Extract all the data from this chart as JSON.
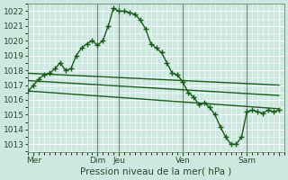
{
  "background_color": "#cce8e0",
  "grid_color": "#ffffff",
  "line_color": "#1a5c1a",
  "xlim": [
    0,
    48
  ],
  "ylim": [
    1012.5,
    1022.5
  ],
  "yticks": [
    1013,
    1014,
    1015,
    1016,
    1017,
    1018,
    1019,
    1020,
    1021,
    1022
  ],
  "xtick_positions": [
    1,
    13,
    17,
    29,
    41,
    47
  ],
  "xtick_labels": [
    "Mer",
    "Dim",
    "Jeu",
    "Ven",
    "Sam",
    ""
  ],
  "xlabel": "Pression niveau de la mer( hPa )",
  "line1_x": [
    0,
    1,
    2,
    3,
    4,
    5,
    6,
    7,
    8,
    9,
    10,
    11,
    12,
    13,
    14,
    15,
    16,
    17,
    18,
    19,
    20,
    21,
    22,
    23,
    24,
    25,
    26,
    27,
    28,
    29,
    30,
    31,
    32,
    33,
    34,
    35,
    36,
    37,
    38,
    39,
    40,
    41,
    42,
    43,
    44,
    45,
    46,
    47
  ],
  "line1_y": [
    1016.6,
    1017.0,
    1017.4,
    1017.7,
    1017.8,
    1018.1,
    1018.5,
    1018.0,
    1018.1,
    1019.0,
    1019.5,
    1019.8,
    1020.0,
    1019.7,
    1020.0,
    1021.0,
    1022.2,
    1022.0,
    1022.0,
    1021.9,
    1021.8,
    1021.4,
    1020.8,
    1019.8,
    1019.5,
    1019.2,
    1018.5,
    1017.8,
    1017.7,
    1017.2,
    1016.5,
    1016.2,
    1015.7,
    1015.8,
    1015.5,
    1015.0,
    1014.2,
    1013.5,
    1013.0,
    1013.0,
    1013.5,
    1015.2,
    1015.3,
    1015.2,
    1015.1,
    1015.3,
    1015.2,
    1015.3
  ],
  "line2_x": [
    0,
    47
  ],
  "line2_y": [
    1017.8,
    1017.0
  ],
  "line3_x": [
    0,
    47
  ],
  "line3_y": [
    1017.3,
    1016.3
  ],
  "line4_x": [
    0,
    47
  ],
  "line4_y": [
    1016.6,
    1015.4
  ],
  "vline_positions": [
    13,
    17,
    29,
    41
  ],
  "vline_color": "#556655",
  "marker_style": "+",
  "marker_size": 4,
  "linewidth": 1.0,
  "tick_fontsize": 6.5,
  "xlabel_fontsize": 7.5
}
